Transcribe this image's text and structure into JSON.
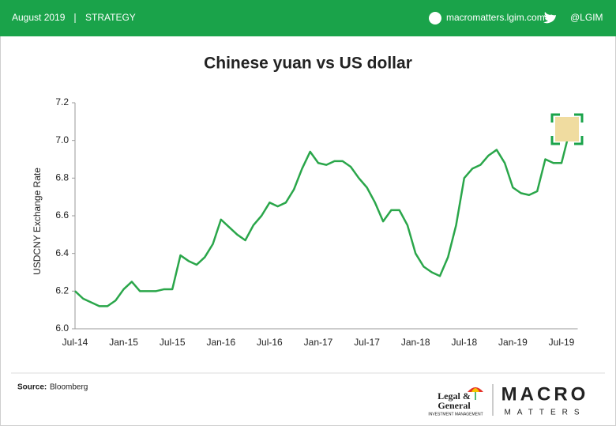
{
  "header": {
    "date": "August 2019",
    "section": "STRATEGY",
    "website": "macromatters.lgim.com",
    "twitter": "@LGIM"
  },
  "chart_data": {
    "type": "line",
    "title": "Chinese yuan vs US dollar",
    "y_label": "USDCNY Exchange Rate",
    "categories": [
      "Jul-14",
      null,
      null,
      null,
      null,
      null,
      "Jan-15",
      null,
      null,
      null,
      null,
      null,
      "Jul-15",
      null,
      null,
      null,
      null,
      null,
      "Jan-16",
      null,
      null,
      null,
      null,
      null,
      "Jul-16",
      null,
      null,
      null,
      null,
      null,
      "Jan-17",
      null,
      null,
      null,
      null,
      null,
      "Jul-17",
      null,
      null,
      null,
      null,
      null,
      "Jan-18",
      null,
      null,
      null,
      null,
      null,
      "Jul-18",
      null,
      null,
      null,
      null,
      null,
      "Jan-19",
      null,
      null,
      null,
      null,
      null,
      "Jul-19",
      null
    ],
    "values": [
      6.2,
      6.16,
      6.14,
      6.12,
      6.12,
      6.15,
      6.21,
      6.25,
      6.2,
      6.2,
      6.2,
      6.21,
      6.21,
      6.39,
      6.36,
      6.34,
      6.38,
      6.45,
      6.58,
      6.54,
      6.5,
      6.47,
      6.55,
      6.6,
      6.67,
      6.65,
      6.67,
      6.74,
      6.85,
      6.94,
      6.88,
      6.87,
      6.89,
      6.89,
      6.86,
      6.8,
      6.75,
      6.67,
      6.57,
      6.63,
      6.63,
      6.55,
      6.4,
      6.33,
      6.3,
      6.28,
      6.38,
      6.55,
      6.8,
      6.85,
      6.87,
      6.92,
      6.95,
      6.88,
      6.75,
      6.72,
      6.71,
      6.73,
      6.9,
      6.88,
      6.88,
      7.05
    ],
    "color": "#2aa64a",
    "ylim": [
      6.0,
      7.2
    ],
    "yticks": [
      {
        "value": 6.0,
        "label": "6.0"
      },
      6.2,
      6.4,
      6.6,
      6.8,
      {
        "value": 7.0,
        "label": "7.0"
      },
      7.2
    ],
    "grid": false
  },
  "footer": {
    "source_label": "Source:",
    "source": "Bloomberg",
    "brand_top": "Legal &",
    "brand_bottom": "General",
    "brand_sub": "INVESTMENT MANAGEMENT",
    "macro": "MACRO",
    "matters": "MATTERS"
  }
}
